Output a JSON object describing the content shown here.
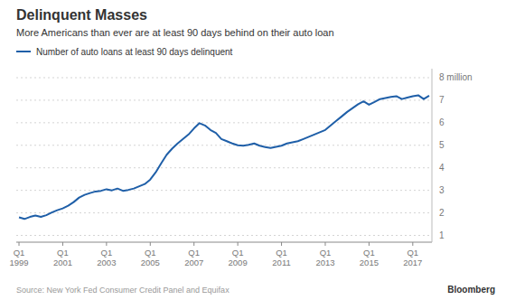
{
  "chart_data": {
    "type": "line",
    "title": "Delinquent Masses",
    "subtitle": "More Americans than ever are at least 90 days behind on their auto loan",
    "source": "Source: New York Fed Consumer Credit Panel and Equifax",
    "credit": "Bloomberg",
    "categories": [
      "Q1\n1999",
      null,
      null,
      null,
      null,
      null,
      null,
      null,
      "Q1\n2001",
      null,
      null,
      null,
      null,
      null,
      null,
      null,
      "Q1\n2003",
      null,
      null,
      null,
      null,
      null,
      null,
      null,
      "Q1\n2005",
      null,
      null,
      null,
      null,
      null,
      null,
      null,
      "Q1\n2007",
      null,
      null,
      null,
      null,
      null,
      null,
      null,
      "Q1\n2009",
      null,
      null,
      null,
      null,
      null,
      null,
      null,
      "Q1\n2011",
      null,
      null,
      null,
      null,
      null,
      null,
      null,
      "Q1\n2013",
      null,
      null,
      null,
      null,
      null,
      null,
      null,
      "Q1\n2015",
      null,
      null,
      null,
      null,
      null,
      null,
      null,
      "Q1\n2017",
      null,
      null,
      null
    ],
    "series": [
      {
        "name": "Number of auto loans at least 90 days delinquent",
        "color": "#1f5fa8",
        "values": [
          1.8,
          1.73,
          1.82,
          1.88,
          1.82,
          1.9,
          2.02,
          2.12,
          2.2,
          2.32,
          2.48,
          2.68,
          2.8,
          2.88,
          2.95,
          2.98,
          3.05,
          3.0,
          3.08,
          2.98,
          3.02,
          3.08,
          3.18,
          3.28,
          3.48,
          3.8,
          4.2,
          4.58,
          4.85,
          5.08,
          5.28,
          5.48,
          5.75,
          5.98,
          5.88,
          5.68,
          5.55,
          5.28,
          5.18,
          5.08,
          5.0,
          4.98,
          5.02,
          5.08,
          4.98,
          4.92,
          4.88,
          4.93,
          4.98,
          5.08,
          5.13,
          5.18,
          5.28,
          5.38,
          5.48,
          5.58,
          5.68,
          5.88,
          6.08,
          6.28,
          6.48,
          6.65,
          6.82,
          6.95,
          6.8,
          6.92,
          7.05,
          7.1,
          7.15,
          7.18,
          7.05,
          7.12,
          7.18,
          7.22,
          7.05,
          7.2
        ]
      }
    ],
    "ylim": [
      0.7,
      8.4
    ],
    "yticks": [
      1,
      2,
      3,
      4,
      5,
      6,
      7
    ],
    "grid": true,
    "legend": "top-left",
    "annotations": [
      {
        "label": "8 million",
        "y": 8
      }
    ]
  }
}
